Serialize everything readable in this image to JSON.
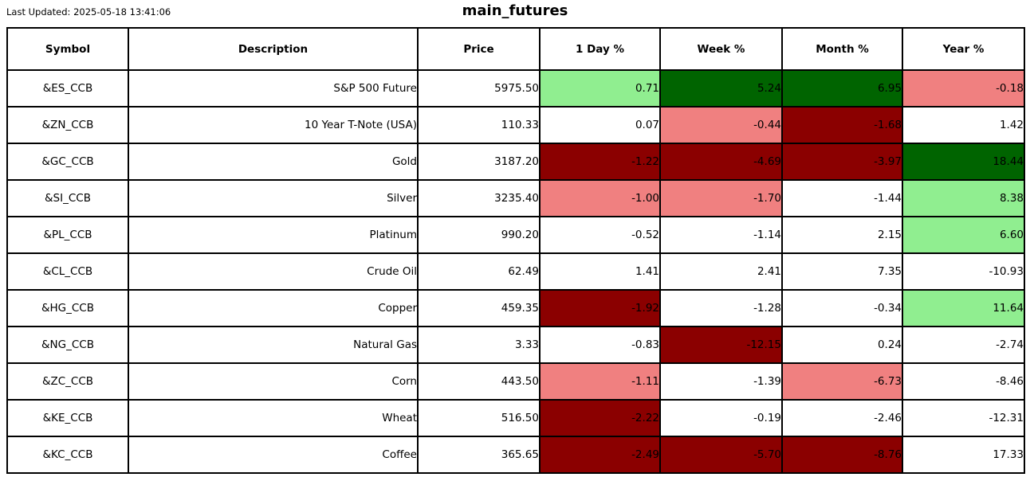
{
  "page": {
    "last_updated": "Last Updated: 2025-05-18 13:41:06",
    "title": "main_futures"
  },
  "chart_data": {
    "type": "table",
    "title": "main_futures",
    "columns": [
      "Symbol",
      "Description",
      "Price",
      "1 Day %",
      "Week %",
      "Month %",
      "Year %"
    ],
    "palette": {
      "white": "#FFFFFF",
      "lightgreen": "#90EE90",
      "darkgreen": "#006400",
      "lightcoral": "#F08080",
      "darkred": "#8B0000"
    },
    "rows": [
      {
        "symbol": "&ES_CCB",
        "description": "S&P 500 Future",
        "price": "5975.50",
        "cells": [
          {
            "value": "0.71",
            "color": "lightgreen"
          },
          {
            "value": "5.24",
            "color": "darkgreen"
          },
          {
            "value": "6.95",
            "color": "darkgreen"
          },
          {
            "value": "-0.18",
            "color": "lightcoral"
          }
        ]
      },
      {
        "symbol": "&ZN_CCB",
        "description": "10 Year T-Note (USA)",
        "price": "110.33",
        "cells": [
          {
            "value": "0.07",
            "color": "white"
          },
          {
            "value": "-0.44",
            "color": "lightcoral"
          },
          {
            "value": "-1.68",
            "color": "darkred"
          },
          {
            "value": "1.42",
            "color": "white"
          }
        ]
      },
      {
        "symbol": "&GC_CCB",
        "description": "Gold",
        "price": "3187.20",
        "cells": [
          {
            "value": "-1.22",
            "color": "darkred"
          },
          {
            "value": "-4.69",
            "color": "darkred"
          },
          {
            "value": "-3.97",
            "color": "darkred"
          },
          {
            "value": "18.44",
            "color": "darkgreen"
          }
        ]
      },
      {
        "symbol": "&SI_CCB",
        "description": "Silver",
        "price": "3235.40",
        "cells": [
          {
            "value": "-1.00",
            "color": "lightcoral"
          },
          {
            "value": "-1.70",
            "color": "lightcoral"
          },
          {
            "value": "-1.44",
            "color": "white"
          },
          {
            "value": "8.38",
            "color": "lightgreen"
          }
        ]
      },
      {
        "symbol": "&PL_CCB",
        "description": "Platinum",
        "price": "990.20",
        "cells": [
          {
            "value": "-0.52",
            "color": "white"
          },
          {
            "value": "-1.14",
            "color": "white"
          },
          {
            "value": "2.15",
            "color": "white"
          },
          {
            "value": "6.60",
            "color": "lightgreen"
          }
        ]
      },
      {
        "symbol": "&CL_CCB",
        "description": "Crude Oil",
        "price": "62.49",
        "cells": [
          {
            "value": "1.41",
            "color": "white"
          },
          {
            "value": "2.41",
            "color": "white"
          },
          {
            "value": "7.35",
            "color": "white"
          },
          {
            "value": "-10.93",
            "color": "white"
          }
        ]
      },
      {
        "symbol": "&HG_CCB",
        "description": "Copper",
        "price": "459.35",
        "cells": [
          {
            "value": "-1.92",
            "color": "darkred"
          },
          {
            "value": "-1.28",
            "color": "white"
          },
          {
            "value": "-0.34",
            "color": "white"
          },
          {
            "value": "11.64",
            "color": "lightgreen"
          }
        ]
      },
      {
        "symbol": "&NG_CCB",
        "description": "Natural Gas",
        "price": "3.33",
        "cells": [
          {
            "value": "-0.83",
            "color": "white"
          },
          {
            "value": "-12.15",
            "color": "darkred"
          },
          {
            "value": "0.24",
            "color": "white"
          },
          {
            "value": "-2.74",
            "color": "white"
          }
        ]
      },
      {
        "symbol": "&ZC_CCB",
        "description": "Corn",
        "price": "443.50",
        "cells": [
          {
            "value": "-1.11",
            "color": "lightcoral"
          },
          {
            "value": "-1.39",
            "color": "white"
          },
          {
            "value": "-6.73",
            "color": "lightcoral"
          },
          {
            "value": "-8.46",
            "color": "white"
          }
        ]
      },
      {
        "symbol": "&KE_CCB",
        "description": "Wheat",
        "price": "516.50",
        "cells": [
          {
            "value": "-2.22",
            "color": "darkred"
          },
          {
            "value": "-0.19",
            "color": "white"
          },
          {
            "value": "-2.46",
            "color": "white"
          },
          {
            "value": "-12.31",
            "color": "white"
          }
        ]
      },
      {
        "symbol": "&KC_CCB",
        "description": "Coffee",
        "price": "365.65",
        "cells": [
          {
            "value": "-2.49",
            "color": "darkred"
          },
          {
            "value": "-5.70",
            "color": "darkred"
          },
          {
            "value": "-8.76",
            "color": "darkred"
          },
          {
            "value": "17.33",
            "color": "white"
          }
        ]
      }
    ]
  }
}
